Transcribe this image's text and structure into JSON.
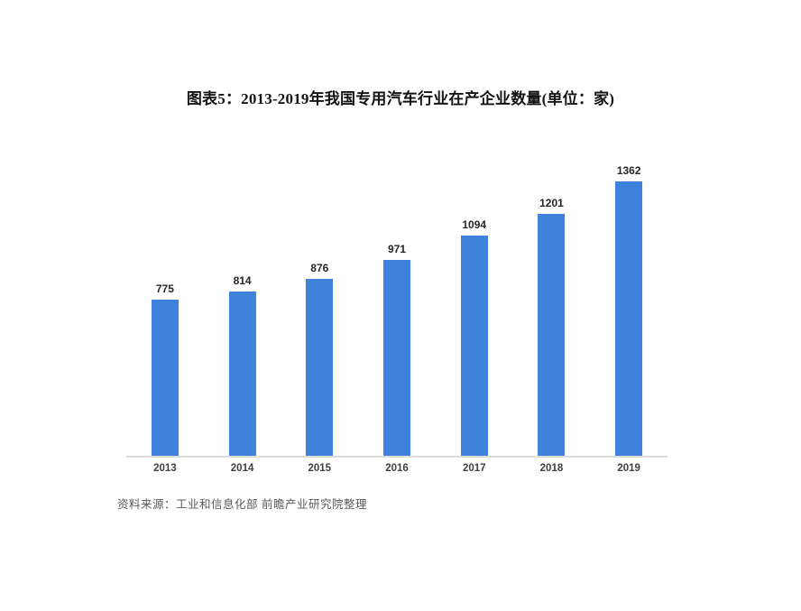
{
  "chart_data": {
    "type": "bar",
    "title": "图表5：2013-2019年我国专用汽车行业在产企业数量(单位：家)",
    "categories": [
      "2013",
      "2014",
      "2015",
      "2016",
      "2017",
      "2018",
      "2019"
    ],
    "values": [
      775,
      814,
      876,
      971,
      1094,
      1201,
      1362
    ],
    "unit": "家",
    "xlabel": "",
    "ylabel": "",
    "ylim": [
      0,
      1500
    ],
    "grid": false,
    "legend": false,
    "data_labels": true,
    "bar_color": "#3e82db",
    "axis_line_color": "#dcdcdc",
    "value_label_color": "#262626",
    "tick_label_color": "#404040",
    "source_note": "资料来源：工业和信息化部 前瞻产业研究院整理"
  }
}
